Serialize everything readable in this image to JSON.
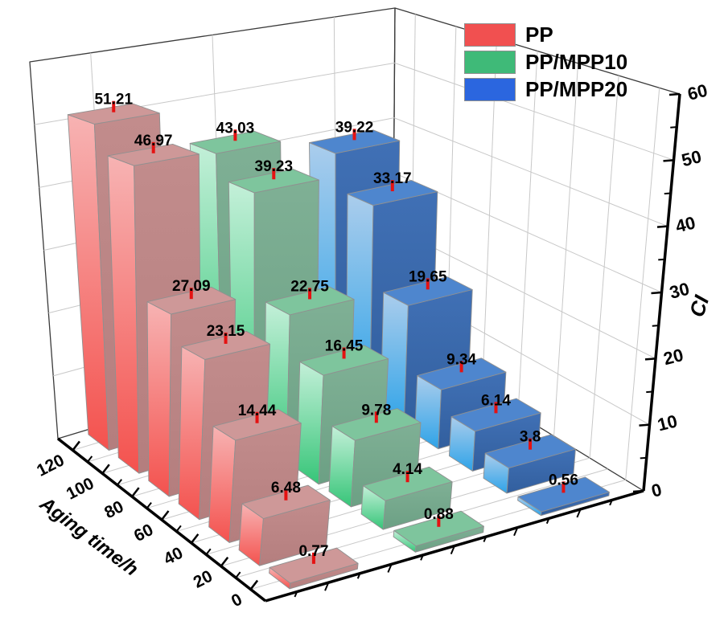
{
  "chart_data": {
    "type": "bar3d",
    "background": "#ffffff",
    "grid": true,
    "grid_color": "#c8c8c8",
    "wall_edge_color": "#3a3a3a",
    "bar_edge_color": "#909090",
    "error_tick_color": "#e51212",
    "legend": {
      "position": "top-right",
      "items": [
        "PP",
        "PP/MPP10",
        "PP/MPP20"
      ]
    },
    "x_axis": {
      "title": "Aging time/h",
      "tick_labels": [
        "0",
        "20",
        "40",
        "60",
        "80",
        "100",
        "120"
      ]
    },
    "z_axis": {
      "title": "CI",
      "min": 0,
      "max": 60,
      "major_step": 10,
      "minor_step": 5,
      "tick_labels": [
        "0",
        "10",
        "20",
        "30",
        "40",
        "50",
        "60"
      ]
    },
    "categories": [
      0,
      20,
      40,
      60,
      80,
      100,
      120
    ],
    "series": [
      {
        "name": "PP",
        "values": [
          0.77,
          6.48,
          14.44,
          23.15,
          27.09,
          46.97,
          51.21
        ],
        "value_labels": [
          "0.77",
          "6.48",
          "14.44",
          "23.15",
          "27.09",
          "46.97",
          "51.21"
        ],
        "colors": {
          "legend": "#f15050",
          "left_top": "#f7b3b3",
          "left_bottom": "#f4524e",
          "front_top": "#c28c8c",
          "front_bottom": "#b47e7e",
          "top": "#ce9898"
        }
      },
      {
        "name": "PP/MPP10",
        "values": [
          0.88,
          4.14,
          9.78,
          16.45,
          22.75,
          39.23,
          43.03
        ],
        "value_labels": [
          "0.88",
          "4.14",
          "9.78",
          "16.45",
          "22.75",
          "39.23",
          "43.03"
        ],
        "colors": {
          "legend": "#3fba78",
          "left_top": "#c4f0d9",
          "left_bottom": "#36c578",
          "front_top": "#7fb095",
          "front_bottom": "#6ca084",
          "top": "#7ec59d"
        }
      },
      {
        "name": "PP/MPP20",
        "values": [
          0.56,
          3.8,
          6.14,
          9.34,
          19.65,
          33.17,
          39.22
        ],
        "value_labels": [
          "0.56",
          "3.8",
          "6.14",
          "9.34",
          "19.65",
          "33.17",
          "39.22"
        ],
        "colors": {
          "legend": "#2b66df",
          "left_top": "#abcdec",
          "left_bottom": "#2ea3e8",
          "front_top": "#4070b5",
          "front_bottom": "#325f9e",
          "top": "#4e86ce"
        }
      }
    ]
  }
}
